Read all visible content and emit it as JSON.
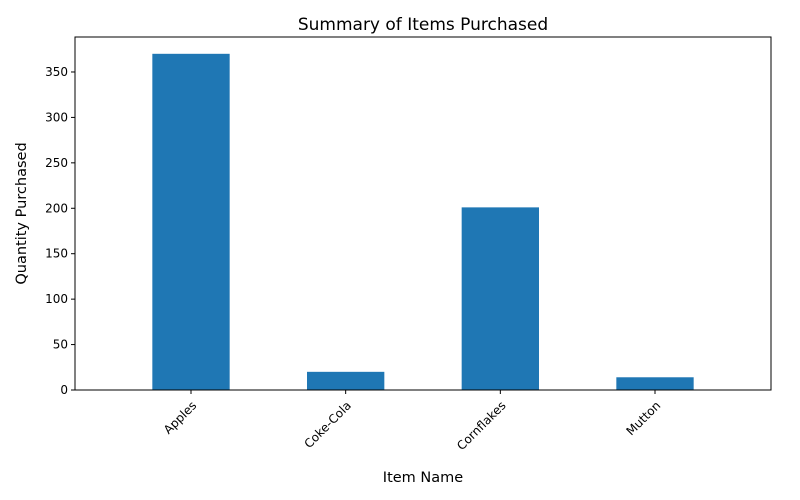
{
  "chart_data": {
    "type": "bar",
    "title": "Summary of Items Purchased",
    "xlabel": "Item Name",
    "ylabel": "Quantity Purchased",
    "categories": [
      "Apples",
      "Coke-Cola",
      "Cornflakes",
      "Mutton"
    ],
    "values": [
      370,
      20,
      201,
      14
    ],
    "ylim": [
      0,
      388.5
    ],
    "yticks": [
      0,
      50,
      100,
      150,
      200,
      250,
      300,
      350
    ],
    "grid": false,
    "legend": "none",
    "bar_color": "#1f77b4",
    "xtick_rotation_deg": 45
  }
}
